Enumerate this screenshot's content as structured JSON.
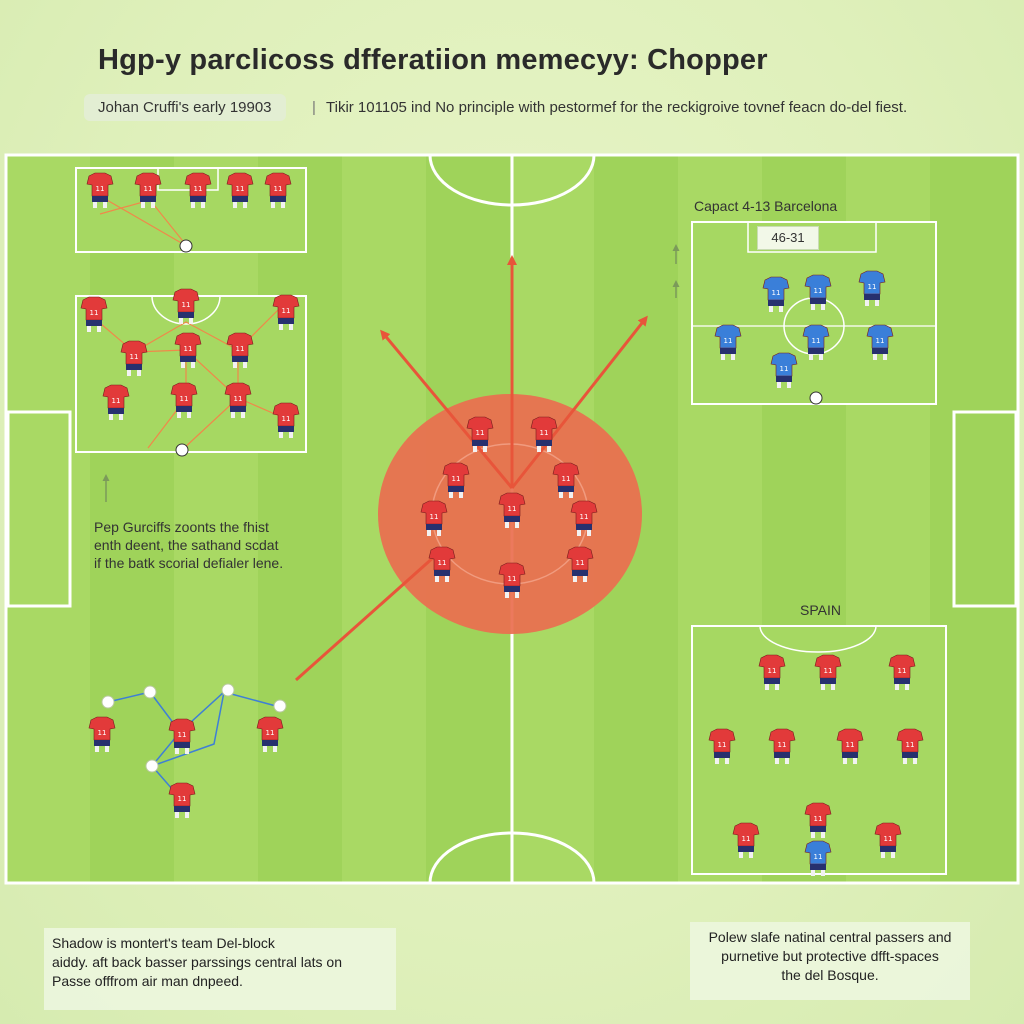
{
  "title": "Hgp-y parclicoss dfferatiion memecyy: Chopper",
  "subtitle": {
    "left": "Johan Cruffi's early 19903",
    "separator": "|",
    "right": "Tikir 101105 ind No principle with pestormef for the reckigroive tovnef feacn do-del fiest."
  },
  "pep_note": {
    "lines": [
      "Pep Gurciffs zoonts the fhist",
      "enth deent, the sathand scdat",
      "if the batk scorial defialer lene."
    ]
  },
  "barcelona_label": "Capact 4-13 Barcelona",
  "barcelona_board": "46-31",
  "spain_label": "SPAIN",
  "note_left": {
    "lines": [
      "Shadow is montert's team Del-block",
      "aiddy. aft back basser parssings central lats on",
      "Passe offfrom air man dnpeed."
    ]
  },
  "note_right": {
    "lines": [
      "Polew slafe natinal central passers and",
      "purnetive but protective dfft-spaces",
      "the del Bosque."
    ]
  },
  "colors": {
    "pitch_green": "#9fd35a",
    "pitch_stripe": "#a9d964",
    "line_white": "#ffffff",
    "pressing_zone": "#ea6e4f",
    "arrow_red": "#e8553a",
    "pass_orange": "#f0884a",
    "pass_blue": "#3e7fd6",
    "player_red": "#e23a3a",
    "player_blue": "#3a7fd9",
    "player_navy": "#27306e"
  },
  "player_numbers": {
    "attack": "11",
    "blue": "11"
  }
}
